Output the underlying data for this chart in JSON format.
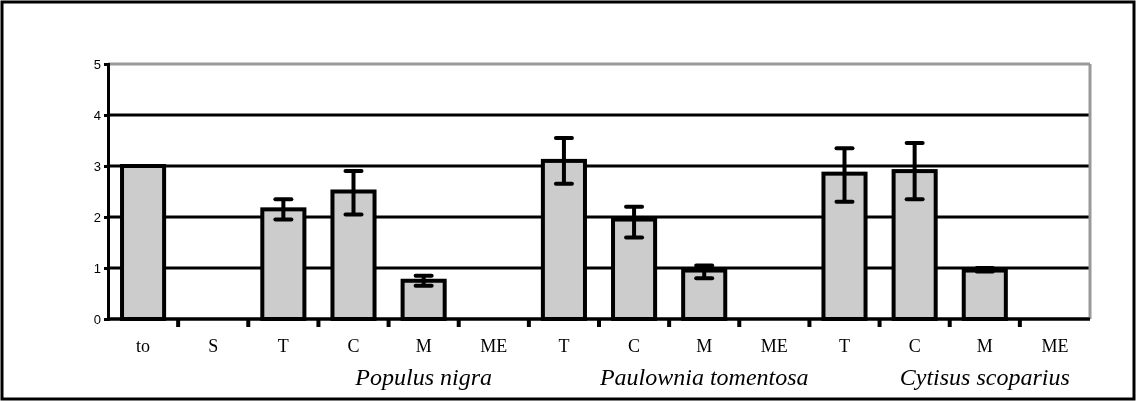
{
  "chart_data": {
    "type": "bar",
    "categories": [
      "to",
      "S",
      "T",
      "C",
      "M",
      "ME",
      "T",
      "C",
      "M",
      "ME",
      "T",
      "C",
      "M",
      "ME"
    ],
    "values": [
      3.0,
      null,
      2.15,
      2.5,
      0.75,
      null,
      3.1,
      1.95,
      0.95,
      null,
      2.85,
      2.9,
      0.95,
      null
    ],
    "errors": [
      null,
      null,
      [
        1.95,
        2.35
      ],
      [
        2.05,
        2.9
      ],
      [
        0.65,
        0.85
      ],
      null,
      [
        2.65,
        3.55
      ],
      [
        1.6,
        2.2
      ],
      [
        0.8,
        1.05
      ],
      null,
      [
        2.3,
        3.35
      ],
      [
        2.35,
        3.45
      ],
      [
        0.93,
        1.0
      ],
      null
    ],
    "color": "#cccccc",
    "ylim": [
      0,
      5
    ],
    "yticks": [
      0,
      1,
      2,
      3,
      4,
      5
    ],
    "grid": "y",
    "annotations": [
      "Populus nigra",
      "Paulownia tomentosa",
      "Cytisus scoparius"
    ]
  }
}
